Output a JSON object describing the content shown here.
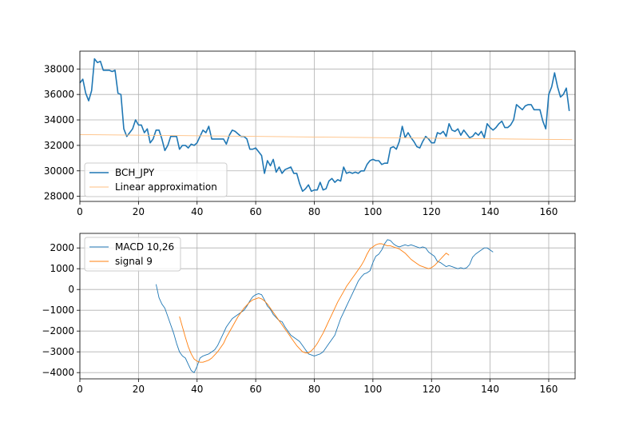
{
  "chart_data": [
    {
      "type": "line",
      "xlim": [
        0,
        169
      ],
      "ylim": [
        27600,
        39400
      ],
      "grid": true,
      "legend_position": "lower-left",
      "x_ticks": [
        "0",
        "20",
        "40",
        "60",
        "80",
        "100",
        "120",
        "140",
        "160"
      ],
      "y_ticks": [
        "28000",
        "30000",
        "32000",
        "34000",
        "36000",
        "38000"
      ],
      "series": [
        {
          "name": "BCH_JPY",
          "color": "#1f77b4",
          "x_start": 0,
          "values": [
            36900,
            37200,
            36100,
            35500,
            36300,
            38800,
            38500,
            38600,
            37900,
            37900,
            37900,
            37800,
            37900,
            36100,
            36000,
            33300,
            32700,
            33000,
            33300,
            34000,
            33600,
            33600,
            33000,
            33300,
            32200,
            32500,
            33200,
            33200,
            32500,
            31600,
            32000,
            32700,
            32700,
            32700,
            31700,
            32000,
            32000,
            31800,
            32100,
            32000,
            32200,
            32700,
            33200,
            33000,
            33500,
            32500,
            32500,
            32500,
            32500,
            32500,
            32100,
            32800,
            33200,
            33100,
            32900,
            32700,
            32700,
            32500,
            31700,
            31700,
            31800,
            31500,
            31200,
            29800,
            30800,
            30400,
            30900,
            29900,
            30300,
            29800,
            30100,
            30200,
            30300,
            29800,
            29800,
            29000,
            28400,
            28600,
            28900,
            28400,
            28500,
            28500,
            29100,
            28500,
            28600,
            29200,
            29400,
            29100,
            29300,
            29200,
            30300,
            29800,
            29900,
            29800,
            29900,
            29800,
            30000,
            30000,
            30500,
            30800,
            30900,
            30800,
            30800,
            30500,
            30600,
            30600,
            31800,
            31900,
            31700,
            32300,
            33500,
            32600,
            33000,
            32600,
            32300,
            31900,
            31800,
            32300,
            32700,
            32500,
            32200,
            32200,
            33000,
            32900,
            33100,
            32700,
            33700,
            33200,
            33100,
            33300,
            32800,
            33200,
            32900,
            32600,
            32700,
            33000,
            32800,
            33100,
            32600,
            33700,
            33400,
            33200,
            33400,
            33700,
            33900,
            33400,
            33400,
            33600,
            34000,
            35200,
            35000,
            34800,
            35100,
            35200,
            35200,
            34800,
            34800,
            34800,
            33900,
            33300,
            36000,
            36600,
            37700,
            36600,
            35800,
            36000,
            36500,
            34700
          ]
        },
        {
          "name": "Linear approximation",
          "color": "#ffbf80",
          "x_start": 0,
          "x_end": 168,
          "y_start": 32850,
          "y_end": 32450
        }
      ]
    },
    {
      "type": "line",
      "xlim": [
        0,
        169
      ],
      "ylim": [
        -4300,
        2700
      ],
      "grid": true,
      "legend_position": "upper-left",
      "x_ticks": [
        "0",
        "20",
        "40",
        "60",
        "80",
        "100",
        "120",
        "140",
        "160"
      ],
      "y_ticks": [
        "−4000",
        "−3000",
        "−2000",
        "−1000",
        "0",
        "1000",
        "2000"
      ],
      "series": [
        {
          "name": "MACD 10,26",
          "color": "#1f77b4",
          "x_start": 26,
          "values": [
            250,
            -400,
            -700,
            -900,
            -1300,
            -1700,
            -2100,
            -2600,
            -3000,
            -3200,
            -3300,
            -3600,
            -3900,
            -4000,
            -3700,
            -3300,
            -3200,
            -3150,
            -3100,
            -3000,
            -2900,
            -2700,
            -2400,
            -2100,
            -1800,
            -1600,
            -1400,
            -1300,
            -1200,
            -1100,
            -1000,
            -800,
            -550,
            -350,
            -250,
            -200,
            -250,
            -500,
            -800,
            -950,
            -1200,
            -1350,
            -1500,
            -1550,
            -1800,
            -2000,
            -2200,
            -2300,
            -2400,
            -2500,
            -2700,
            -2900,
            -3100,
            -3150,
            -3200,
            -3150,
            -3100,
            -3000,
            -2800,
            -2600,
            -2400,
            -2200,
            -1800,
            -1400,
            -1100,
            -800,
            -500,
            -200,
            100,
            400,
            600,
            750,
            800,
            900,
            1300,
            1600,
            1700,
            1900,
            2200,
            2400,
            2350,
            2200,
            2100,
            2050,
            2100,
            2150,
            2100,
            2150,
            2100,
            2050,
            2000,
            2050,
            2000,
            1800,
            1700,
            1600,
            1350,
            1300,
            1200,
            1100,
            1150,
            1100,
            1050,
            1000,
            1050,
            1000,
            1050,
            1200,
            1550,
            1700,
            1800,
            1900,
            2000,
            2000,
            1900,
            1800
          ]
        },
        {
          "name": "signal 9",
          "color": "#ff7f0e",
          "x_start": 34,
          "values": [
            -1300,
            -1800,
            -2300,
            -2750,
            -3100,
            -3350,
            -3450,
            -3500,
            -3500,
            -3450,
            -3400,
            -3300,
            -3150,
            -3000,
            -2800,
            -2600,
            -2300,
            -2050,
            -1800,
            -1550,
            -1300,
            -1100,
            -900,
            -750,
            -600,
            -500,
            -450,
            -400,
            -450,
            -550,
            -700,
            -900,
            -1100,
            -1300,
            -1500,
            -1700,
            -1900,
            -2100,
            -2300,
            -2500,
            -2700,
            -2850,
            -3000,
            -3050,
            -3050,
            -2950,
            -2800,
            -2600,
            -2350,
            -2100,
            -1800,
            -1500,
            -1200,
            -900,
            -600,
            -350,
            -100,
            150,
            350,
            550,
            750,
            950,
            1150,
            1400,
            1700,
            1950,
            2050,
            2150,
            2200,
            2200,
            2150,
            2100,
            2100,
            2050,
            2000,
            1950,
            1850,
            1750,
            1600,
            1450,
            1350,
            1250,
            1150,
            1100,
            1050,
            1000,
            1050,
            1150,
            1300,
            1450,
            1600,
            1750,
            1650
          ]
        }
      ]
    }
  ]
}
